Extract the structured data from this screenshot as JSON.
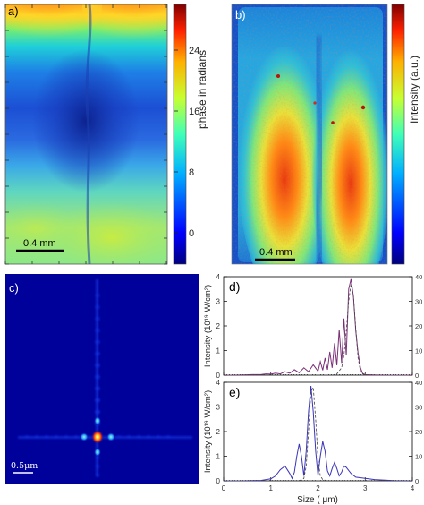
{
  "panels": {
    "a": {
      "label": "a)",
      "scale_bar": "0.4 mm",
      "colorbar_label": "phase in radians",
      "colorbar_ticks": [
        "24",
        "16",
        "8",
        "0"
      ]
    },
    "b": {
      "label": "b)",
      "scale_bar": "0.4 mm",
      "colorbar_label": "Intensity (a.u.)"
    },
    "c": {
      "label": "c)",
      "scale_bar": "0.5μm"
    },
    "d": {
      "label": "d)"
    },
    "e": {
      "label": "e)"
    }
  },
  "chart_data": [
    {
      "type": "line",
      "panel": "d",
      "ylabel": "Intensity (10¹⁹ W/cm²)",
      "xlim": [
        0,
        4
      ],
      "ylim": [
        0,
        4
      ],
      "y_ticks": [
        "0",
        "1",
        "2",
        "3",
        "4"
      ],
      "right_ticks": [
        "0",
        "10",
        "20",
        "30",
        "40"
      ],
      "series": [
        {
          "style": "solid",
          "color": "#7b2f78",
          "x": [
            0.0,
            0.2,
            0.4,
            0.6,
            0.8,
            0.9,
            1.0,
            1.1,
            1.2,
            1.3,
            1.4,
            1.5,
            1.6,
            1.7,
            1.8,
            1.9,
            2.0,
            2.05,
            2.1,
            2.15,
            2.2,
            2.25,
            2.3,
            2.35,
            2.4,
            2.45,
            2.5,
            2.55,
            2.6,
            2.65,
            2.7,
            2.75,
            2.8,
            2.85,
            2.9,
            2.95,
            3.0,
            3.2,
            3.5,
            4.0
          ],
          "y": [
            0.0,
            0.0,
            0.01,
            0.02,
            0.03,
            0.05,
            0.04,
            0.08,
            0.05,
            0.14,
            0.08,
            0.22,
            0.1,
            0.3,
            0.14,
            0.42,
            0.16,
            0.55,
            0.2,
            0.7,
            0.22,
            0.95,
            0.3,
            1.3,
            0.4,
            1.85,
            0.5,
            2.3,
            0.8,
            3.5,
            3.9,
            3.2,
            1.8,
            0.9,
            0.3,
            0.05,
            0.02,
            0.01,
            0.0,
            0.0
          ]
        },
        {
          "style": "dashed",
          "color": "#444444",
          "x": [
            2.3,
            2.4,
            2.5,
            2.55,
            2.6,
            2.65,
            2.7,
            2.75,
            2.8,
            2.85,
            2.9,
            3.0
          ],
          "y": [
            0.0,
            0.05,
            0.3,
            0.8,
            1.8,
            3.0,
            3.7,
            3.2,
            1.9,
            0.7,
            0.15,
            0.0
          ]
        },
        {
          "style": "dotted",
          "color": "#444444",
          "x": [
            0.0,
            4.0
          ],
          "y": [
            0.02,
            0.02
          ]
        }
      ]
    },
    {
      "type": "line",
      "panel": "e",
      "xlabel": "Size ( μm)",
      "ylabel": "Intensity (10¹⁹ W/cm²)",
      "xlim": [
        0,
        4
      ],
      "ylim": [
        0,
        4
      ],
      "x_ticks": [
        "0",
        "1",
        "2",
        "3",
        "4"
      ],
      "y_ticks": [
        "0",
        "1",
        "2",
        "3",
        "4"
      ],
      "right_ticks": [
        "0",
        "10",
        "20",
        "30",
        "40"
      ],
      "series": [
        {
          "style": "solid",
          "color": "#3a34b8",
          "x": [
            0.0,
            0.4,
            0.8,
            1.0,
            1.1,
            1.2,
            1.3,
            1.4,
            1.45,
            1.5,
            1.55,
            1.6,
            1.65,
            1.7,
            1.75,
            1.8,
            1.85,
            1.9,
            1.95,
            2.0,
            2.05,
            2.1,
            2.15,
            2.2,
            2.25,
            2.3,
            2.35,
            2.4,
            2.45,
            2.5,
            2.55,
            2.6,
            2.7,
            2.8,
            3.0,
            3.2,
            3.6,
            4.0
          ],
          "y": [
            0.0,
            0.0,
            0.02,
            0.08,
            0.2,
            0.45,
            0.6,
            0.3,
            0.1,
            0.35,
            1.0,
            1.5,
            1.0,
            0.2,
            1.2,
            2.8,
            3.85,
            2.8,
            1.2,
            0.2,
            1.0,
            1.6,
            1.2,
            0.4,
            0.2,
            0.5,
            0.75,
            0.5,
            0.2,
            0.35,
            0.6,
            0.55,
            0.3,
            0.15,
            0.1,
            0.05,
            0.01,
            0.0
          ]
        },
        {
          "style": "dashed",
          "color": "#444444",
          "x": [
            1.6,
            1.7,
            1.75,
            1.8,
            1.85,
            1.9,
            1.95,
            2.0,
            2.05,
            2.1,
            2.2
          ],
          "y": [
            0.0,
            0.1,
            0.6,
            2.0,
            3.6,
            3.8,
            2.5,
            0.9,
            0.2,
            0.05,
            0.0
          ]
        },
        {
          "style": "dotted",
          "color": "#444444",
          "x": [
            0.0,
            4.0
          ],
          "y": [
            0.02,
            0.02
          ]
        }
      ]
    }
  ]
}
